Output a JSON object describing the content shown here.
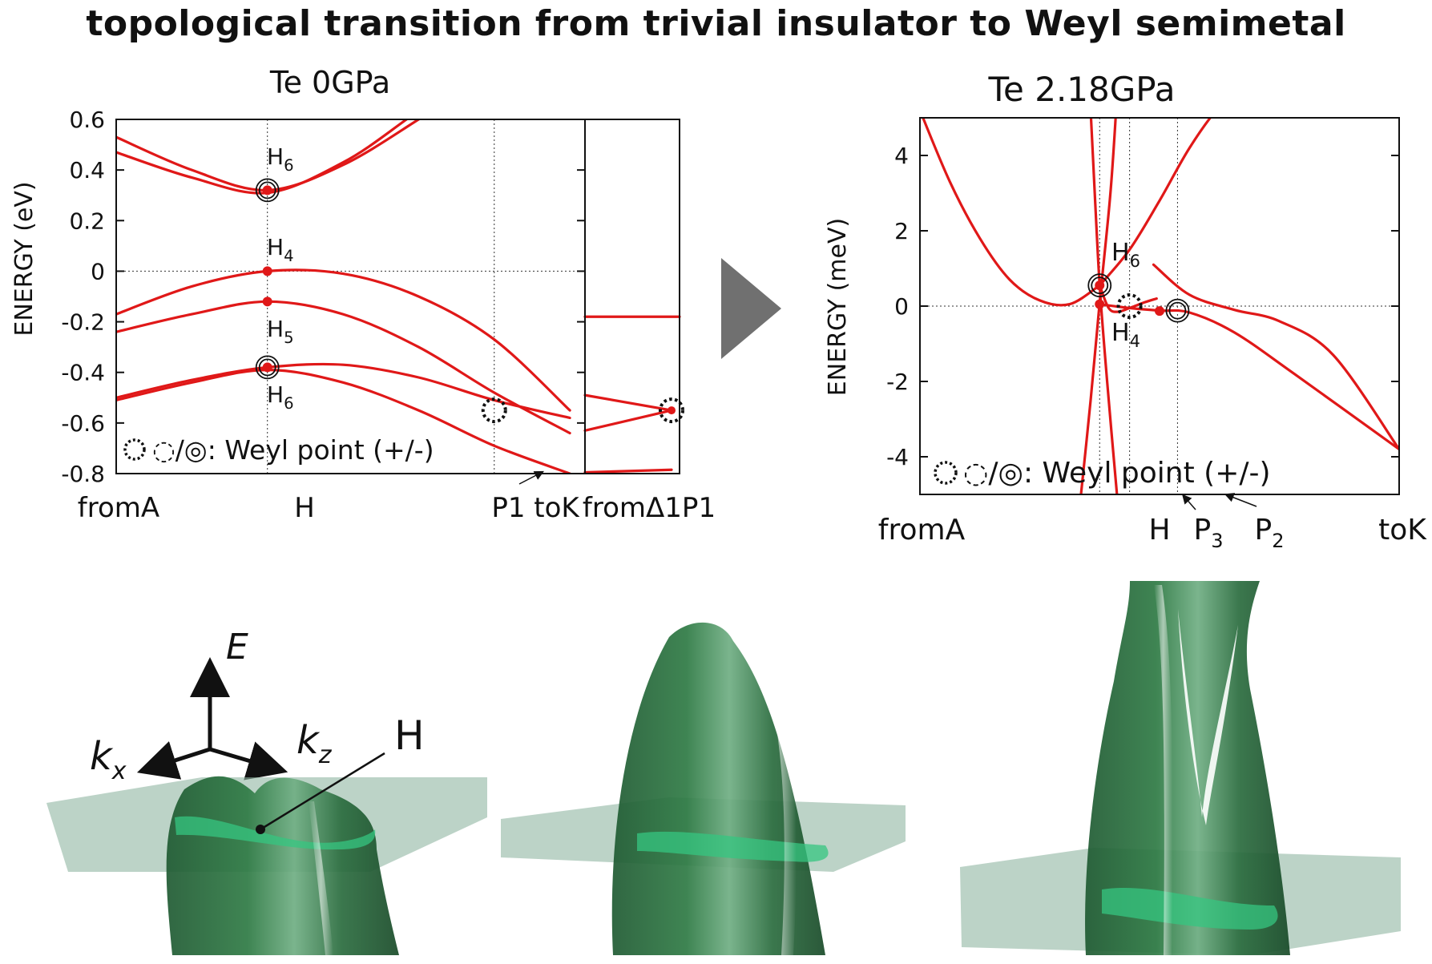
{
  "main_title": "topological transition from trivial insulator to Weyl semimetal",
  "arrow_color": "#707070",
  "surface_color": "#2f7a45",
  "plane_color": "#8fb5a2",
  "axes3d": {
    "e": "E",
    "kx": "k",
    "kx_sub": "x",
    "kz": "k",
    "kz_sub": "z",
    "point": "H"
  },
  "chart_data": [
    {
      "type": "line",
      "title": "Te 0GPa",
      "ylabel": "ENERGY (eV)",
      "ylim": [
        -0.8,
        0.6
      ],
      "yticks": [
        0.6,
        0.4,
        0.2,
        0,
        -0.2,
        -0.4,
        -0.6,
        -0.8
      ],
      "ytick_labels": [
        "0.6",
        "0.4",
        "0.2",
        "0",
        "-0.2",
        "-0.4",
        "-0.6",
        "-0.8"
      ],
      "kpath_labels": [
        "fromA",
        "H",
        "P1 toK",
        "fromΔ1P1"
      ],
      "legend": "◌/◎: Weyl point (+/-)",
      "color": "#e01818",
      "annotations": [
        {
          "label": "H",
          "sub": "6",
          "x": 0,
          "y": 0.32
        },
        {
          "label": "H",
          "sub": "4",
          "x": 0,
          "y": 0.0
        },
        {
          "label": "H",
          "sub": "5",
          "x": 0,
          "y": -0.12
        },
        {
          "label": "H",
          "sub": "6",
          "x": 0,
          "y": -0.38
        }
      ],
      "series": [
        {
          "x": [
            -1.0,
            -0.5,
            0,
            0.5,
            1.0,
            1.25
          ],
          "y": [
            0.53,
            0.4,
            0.32,
            0.42,
            0.6,
            0.7
          ]
        },
        {
          "x": [
            -1.0,
            -0.5,
            0,
            0.5,
            0.92,
            1.25
          ],
          "y": [
            0.47,
            0.37,
            0.31,
            0.43,
            0.6,
            0.75
          ]
        },
        {
          "x": [
            -1.0,
            -0.5,
            0,
            0.5,
            1.0,
            1.5,
            2.0
          ],
          "y": [
            -0.17,
            -0.06,
            0.0,
            -0.01,
            -0.1,
            -0.27,
            -0.55
          ]
        },
        {
          "x": [
            -1.0,
            -0.5,
            0,
            0.5,
            1.0,
            1.5,
            2.0
          ],
          "y": [
            -0.24,
            -0.17,
            -0.12,
            -0.17,
            -0.3,
            -0.48,
            -0.64
          ]
        },
        {
          "x": [
            -1.0,
            -0.5,
            0,
            0.5,
            1.0,
            1.5,
            2.0
          ],
          "y": [
            -0.5,
            -0.43,
            -0.38,
            -0.37,
            -0.42,
            -0.51,
            -0.58
          ]
        },
        {
          "x": [
            -1.0,
            -0.5,
            0,
            0.5,
            1.0,
            1.5,
            2.0
          ],
          "y": [
            -0.51,
            -0.44,
            -0.39,
            -0.44,
            -0.55,
            -0.69,
            -0.8
          ]
        }
      ],
      "side_panel": {
        "flat": -0.18,
        "lines": [
          {
            "x": [
              0,
              1
            ],
            "y": [
              -0.49,
              -0.55
            ]
          },
          {
            "x": [
              0,
              1
            ],
            "y": [
              -0.63,
              -0.55
            ]
          },
          {
            "x": [
              0,
              1
            ],
            "y": [
              -0.795,
              -0.785
            ]
          }
        ]
      },
      "markers_filled": [
        {
          "x": 0,
          "y": 0.32
        },
        {
          "x": 0,
          "y": 0.0
        },
        {
          "x": 0,
          "y": -0.12
        },
        {
          "x": 0,
          "y": -0.38
        }
      ],
      "markers_plus": [
        {
          "x": 0,
          "y": 0.32
        },
        {
          "x": 0,
          "y": -0.38
        }
      ],
      "markers_minus": [
        {
          "x": 1.5,
          "y": -0.55
        }
      ]
    },
    {
      "type": "line",
      "title": "Te 2.18GPa",
      "ylabel": "ENERGY (meV)",
      "ylim": [
        -5,
        5
      ],
      "yticks": [
        4,
        2,
        0,
        -2,
        -4
      ],
      "ytick_labels": [
        "4",
        "2",
        "0",
        "-2",
        "-4"
      ],
      "kpath_labels": [
        "fromA",
        "H",
        "P",
        "P",
        "toK"
      ],
      "kpath_subs": [
        "",
        "",
        "3",
        "2",
        ""
      ],
      "legend": "◌/◎: Weyl point (+/-)",
      "color": "#e01818",
      "annotations": [
        {
          "label": "H",
          "sub": "6",
          "x": 0,
          "y": 0.55
        },
        {
          "label": "H",
          "sub": "4",
          "x": 0,
          "y": 0.05
        }
      ],
      "series": [
        {
          "x": [
            -6.0,
            -5.0,
            -4.0,
            -3.0,
            -2.0,
            -1.0,
            0
          ],
          "y": [
            5.2,
            3.3,
            1.8,
            0.7,
            0.15,
            0.05,
            0.55
          ]
        },
        {
          "x": [
            0,
            0.3,
            0.6,
            1.0,
            1.5,
            1.9
          ],
          "y": [
            0.55,
            -0.05,
            -0.15,
            -0.05,
            0.1,
            0.2
          ]
        },
        {
          "x": [
            0,
            1.0,
            2.0,
            3.0,
            4.0,
            5.0
          ],
          "y": [
            0.55,
            1.5,
            2.8,
            4.2,
            5.3,
            6.0
          ]
        },
        {
          "x": [
            -0.3,
            -0.15,
            0,
            0.25,
            0.6
          ],
          "y": [
            5.2,
            2.8,
            0.55,
            -2.0,
            -5.2
          ]
        },
        {
          "x": [
            0.55,
            0.35,
            0,
            -0.3,
            -0.65
          ],
          "y": [
            5.2,
            2.9,
            0.1,
            -2.5,
            -5.2
          ]
        },
        {
          "x": [
            1.8,
            3.0,
            4.5,
            6.0,
            7.8,
            10.0
          ],
          "y": [
            1.1,
            0.3,
            -0.1,
            -0.4,
            -1.3,
            -3.8
          ]
        },
        {
          "x": [
            0,
            1.0,
            2.0,
            3.0,
            4.5,
            6.5,
            10.0
          ],
          "y": [
            0.05,
            -0.05,
            -0.12,
            -0.17,
            -0.7,
            -1.8,
            -3.8
          ]
        }
      ],
      "markers_filled": [
        {
          "x": 0,
          "y": 0.55
        },
        {
          "x": 0,
          "y": 0.05
        },
        {
          "x": 2.0,
          "y": -0.13
        }
      ],
      "markers_plus": [
        {
          "x": 0,
          "y": 0.55
        },
        {
          "x": 2.6,
          "y": -0.12
        }
      ],
      "markers_minus": [
        {
          "x": 1.0,
          "y": 0.0
        }
      ]
    }
  ]
}
